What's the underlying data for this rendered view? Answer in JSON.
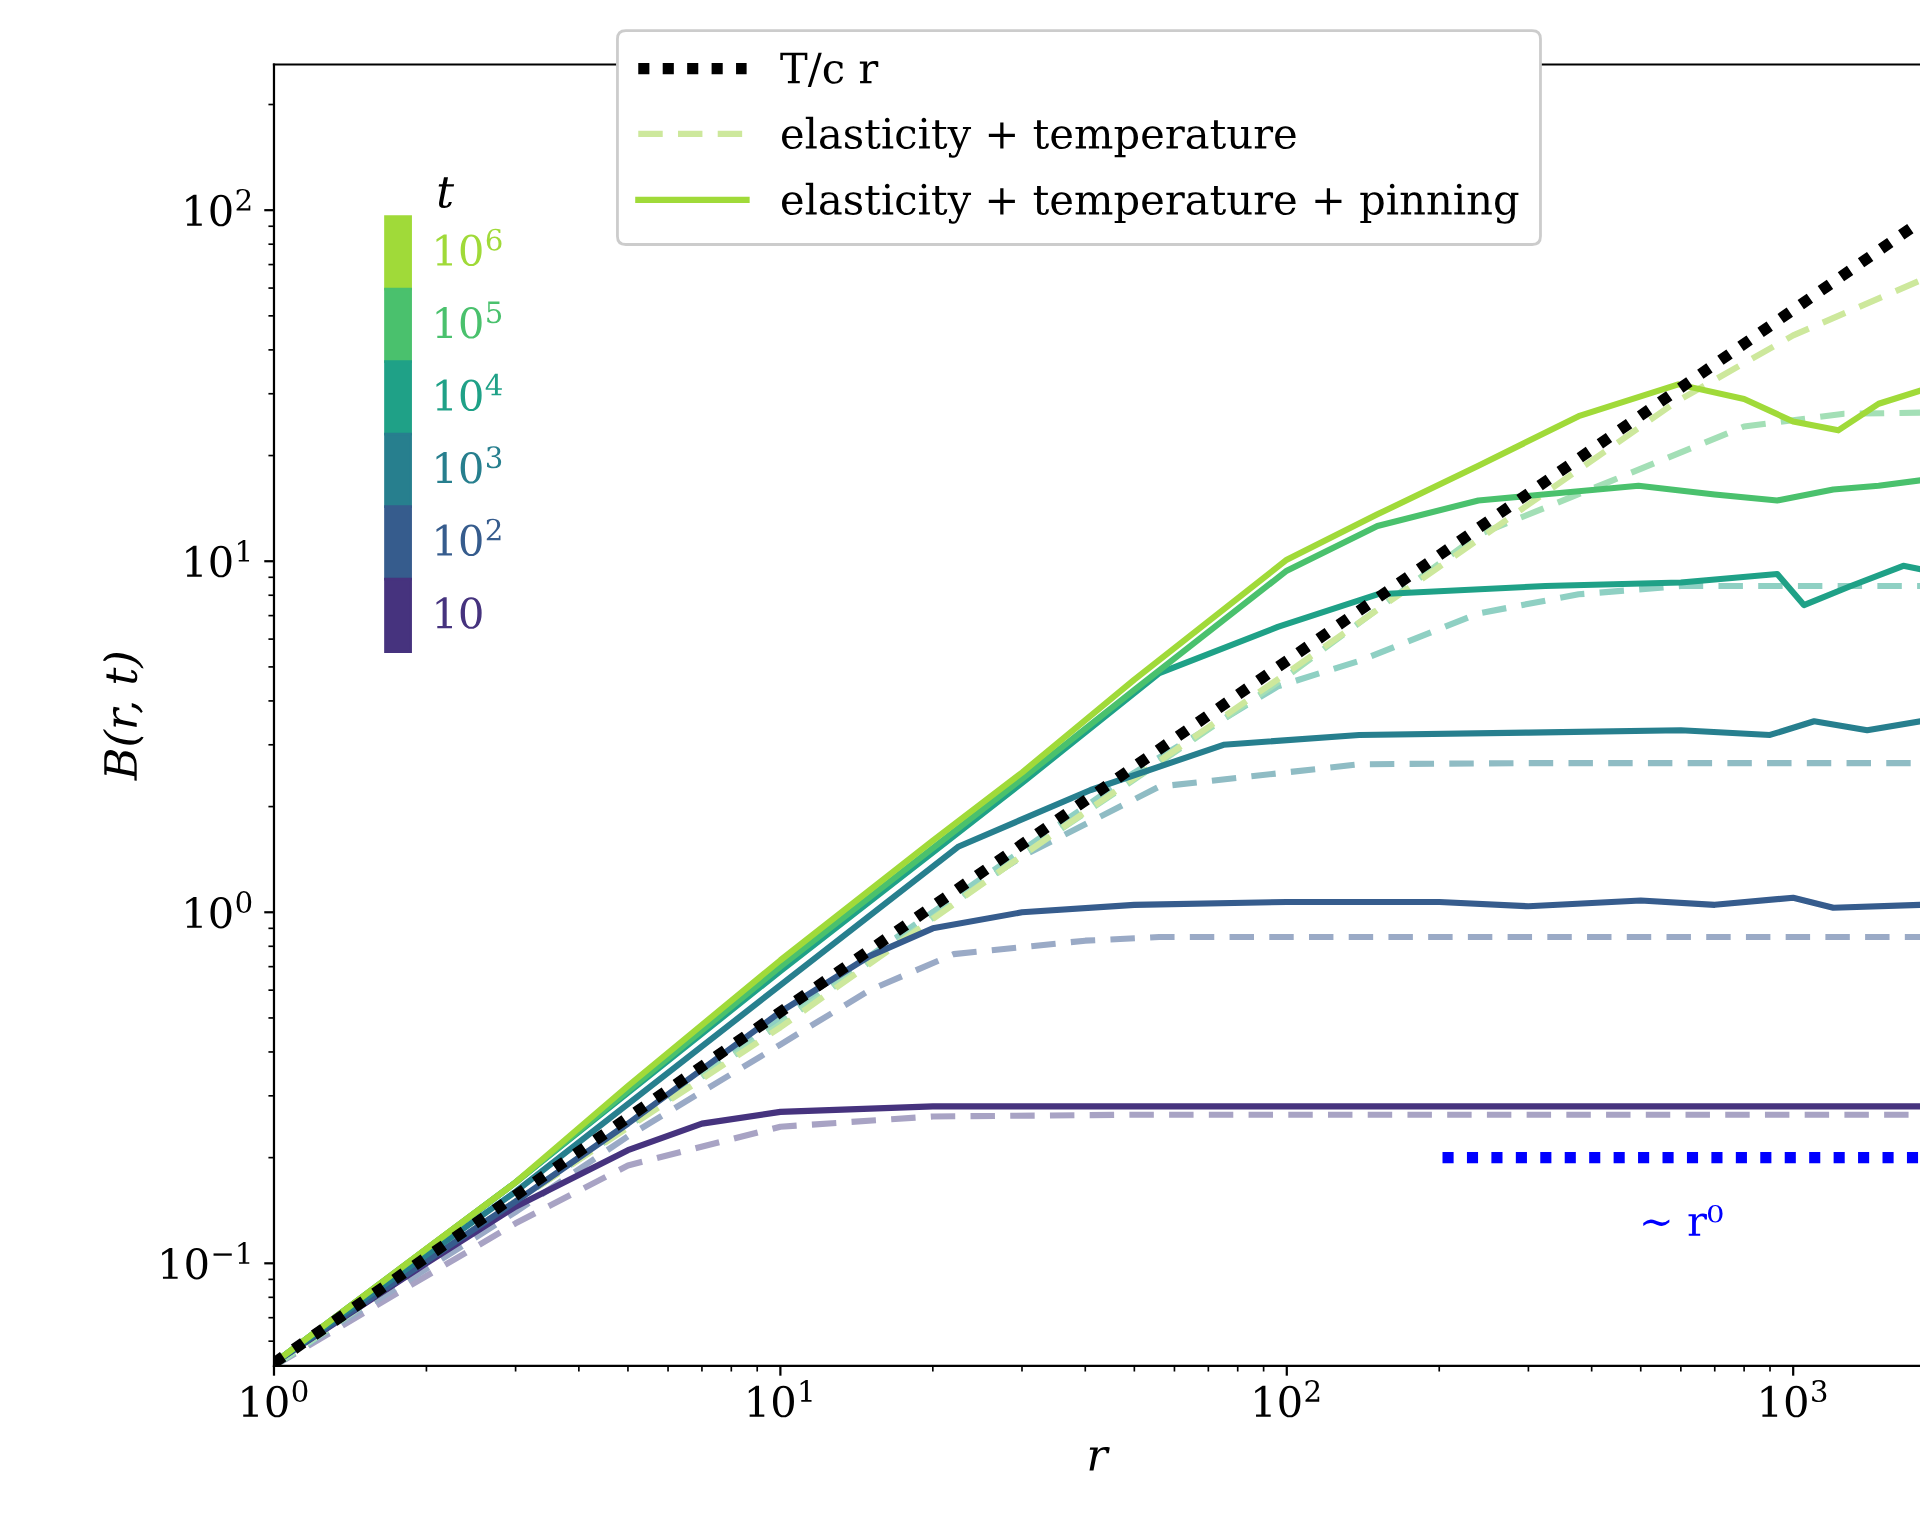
{
  "chart_data": {
    "type": "line",
    "xlabel": "r",
    "ylabel": "B(r, t)",
    "log": "xy",
    "xlim": [
      1,
      1780
    ],
    "ylim": [
      0.051,
      260
    ],
    "xticks": [
      {
        "value": 1,
        "label": "10$^{0}$"
      },
      {
        "value": 10,
        "label": "10$^{1}$"
      },
      {
        "value": 100,
        "label": "10$^{2}$"
      },
      {
        "value": 1000,
        "label": "10$^{3}$"
      }
    ],
    "yticks": [
      {
        "value": 0.1,
        "label": "10$^{−1}$"
      },
      {
        "value": 1,
        "label": "10$^{0}$"
      },
      {
        "value": 10,
        "label": "10$^{1}$"
      },
      {
        "value": 100,
        "label": "10$^{2}$"
      }
    ],
    "grid": false,
    "legend": "top",
    "legend_title": "t",
    "series": [
      {
        "color": "#a8a3c4",
        "line_style": "dashed",
        "x": [
          1,
          3,
          5,
          10,
          20,
          50,
          200,
          1780
        ],
        "values": [
          0.051,
          0.13,
          0.19,
          0.245,
          0.262,
          0.265,
          0.265,
          0.265
        ]
      },
      {
        "color": "#9aaac6",
        "line_style": "dashed",
        "x": [
          1,
          3,
          5,
          10,
          15,
          22,
          40,
          56,
          100,
          1780
        ],
        "values": [
          0.051,
          0.14,
          0.23,
          0.42,
          0.6,
          0.76,
          0.83,
          0.85,
          0.85,
          0.85
        ]
      },
      {
        "color": "#8fbcc4",
        "line_style": "dashed",
        "x": [
          1,
          3,
          10,
          20,
          30.5,
          56,
          139,
          300,
          1780
        ],
        "values": [
          0.051,
          0.15,
          0.48,
          1.0,
          1.46,
          2.28,
          2.64,
          2.66,
          2.66
        ]
      },
      {
        "color": "#8fd0c3",
        "line_style": "dashed",
        "x": [
          1,
          3,
          10,
          30,
          50,
          96,
          139,
          239,
          377,
          600,
          1780
        ],
        "values": [
          0.051,
          0.15,
          0.5,
          1.5,
          2.5,
          4.4,
          5.2,
          7.1,
          8.05,
          8.5,
          8.5
        ]
      },
      {
        "color": "#a3dfb6",
        "line_style": "dashed",
        "x": [
          1,
          3,
          10,
          30,
          100,
          239,
          440,
          800,
          1260,
          1780
        ],
        "values": [
          0.051,
          0.15,
          0.48,
          1.45,
          4.7,
          11.9,
          17,
          24.2,
          26.3,
          26.5
        ]
      },
      {
        "name": "elasticity + temperature",
        "color": "#cde89c",
        "line_style": "dashed",
        "x": [
          1,
          3,
          10,
          30,
          100,
          300,
          593,
          1000,
          1780
        ],
        "values": [
          0.052,
          0.15,
          0.47,
          1.45,
          4.8,
          14.5,
          28.7,
          44,
          63
        ]
      },
      {
        "name": "10",
        "color": "#46337e",
        "line_style": "solid",
        "x": [
          1,
          2,
          3,
          5,
          7,
          10,
          20,
          50,
          100,
          200,
          400,
          700,
          1000,
          1400,
          1780
        ],
        "values": [
          0.052,
          0.1,
          0.145,
          0.21,
          0.25,
          0.27,
          0.28,
          0.28,
          0.28,
          0.28,
          0.28,
          0.28,
          0.28,
          0.28,
          0.28
        ]
      },
      {
        "name": "10$^{2}$",
        "color": "#365c8d",
        "line_style": "solid",
        "x": [
          1,
          3,
          5,
          10,
          15,
          20,
          30,
          50,
          100,
          200,
          300,
          500,
          700,
          1000,
          1200,
          1780
        ],
        "values": [
          0.052,
          0.15,
          0.25,
          0.52,
          0.75,
          0.9,
          1.0,
          1.05,
          1.07,
          1.07,
          1.04,
          1.08,
          1.05,
          1.1,
          1.03,
          1.05
        ]
      },
      {
        "name": "10$^{3}$",
        "color": "#277f8e",
        "line_style": "solid",
        "x": [
          1,
          3,
          10,
          22.5,
          41,
          75,
          139,
          300,
          600,
          900,
          1100,
          1400,
          1780
        ],
        "values": [
          0.052,
          0.16,
          0.62,
          1.54,
          2.23,
          3.0,
          3.2,
          3.25,
          3.3,
          3.2,
          3.5,
          3.3,
          3.5
        ]
      },
      {
        "name": "10$^{4}$",
        "color": "#1fa187",
        "line_style": "solid",
        "x": [
          1,
          3,
          10,
          30.5,
          56,
          96,
          151,
          324,
          600,
          930,
          1050,
          1300,
          1650,
          1780
        ],
        "values": [
          0.052,
          0.17,
          0.68,
          2.38,
          4.8,
          6.5,
          8.05,
          8.5,
          8.7,
          9.2,
          7.5,
          8.5,
          9.7,
          9.5
        ]
      },
      {
        "name": "10$^{5}$",
        "color": "#4ac16d",
        "line_style": "solid",
        "x": [
          1,
          3,
          10,
          30,
          50,
          100,
          151,
          239,
          495,
          700,
          930,
          1200,
          1475,
          1780
        ],
        "values": [
          0.052,
          0.17,
          0.7,
          2.4,
          4.3,
          9.4,
          12.6,
          14.9,
          16.4,
          15.5,
          14.9,
          16,
          16.4,
          17
        ]
      },
      {
        "name": "10$^{6}$",
        "color": "#a0da39",
        "line_style": "solid",
        "x": [
          1,
          2,
          3,
          5,
          10,
          20,
          30,
          50,
          100,
          151,
          239,
          377,
          593,
          800,
          1000,
          1228,
          1475,
          1780
        ],
        "values": [
          0.052,
          0.11,
          0.17,
          0.32,
          0.73,
          1.6,
          2.5,
          4.6,
          10.1,
          13.6,
          18.7,
          25.9,
          31.9,
          29,
          25,
          23.6,
          28.1,
          30.6
        ]
      },
      {
        "name": "T/c r",
        "color": "#000000",
        "line_style": "dotted",
        "x": [
          1,
          1780
        ],
        "values": [
          0.052,
          92.6
        ]
      },
      {
        "color": "#0000ff",
        "line_style": "dotted",
        "x": [
          203,
          1780
        ],
        "values": [
          0.2,
          0.2
        ]
      }
    ],
    "annotations": [
      "elasticity + temperature + pinning",
      "∼ r⁰"
    ]
  }
}
